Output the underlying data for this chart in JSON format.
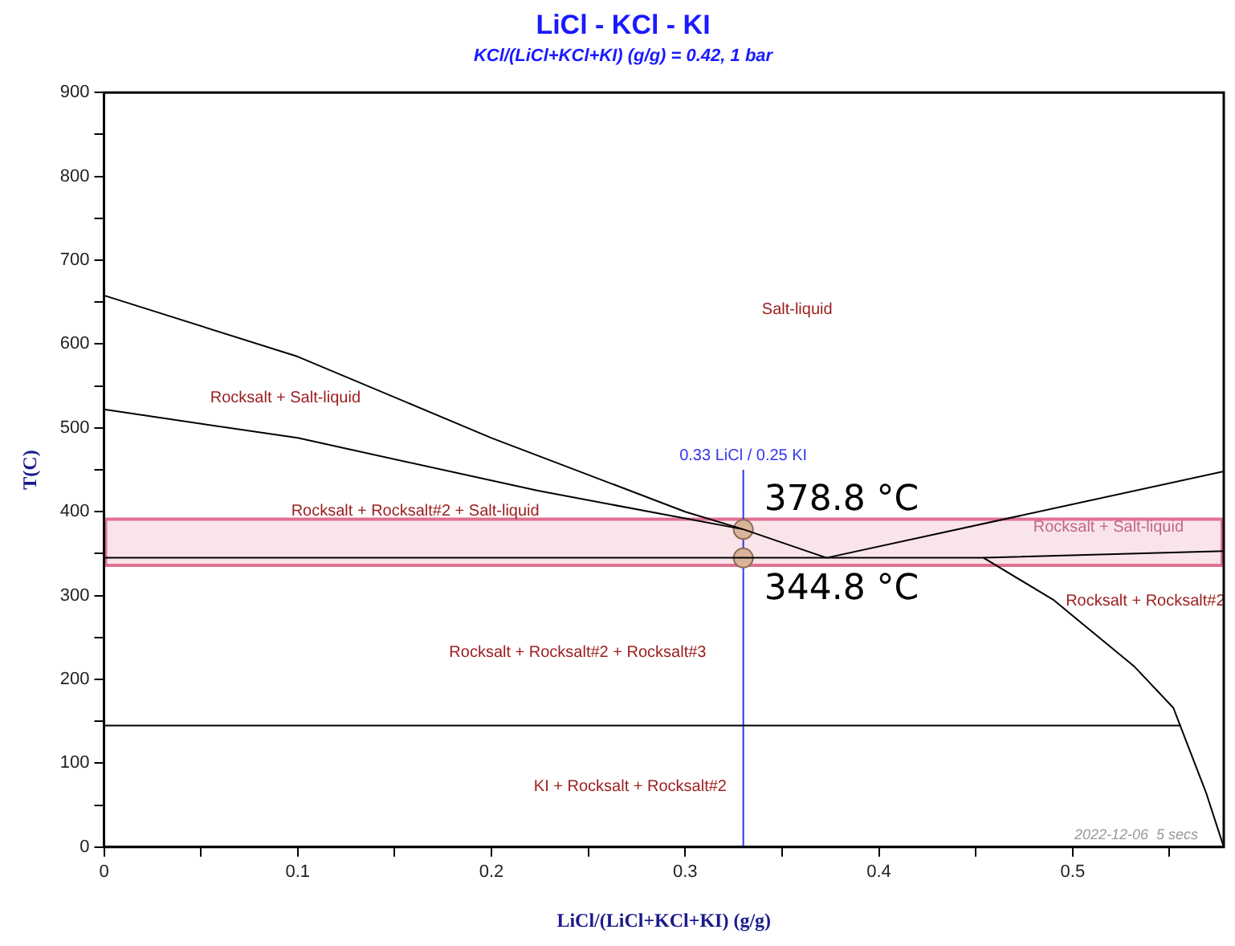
{
  "chart_data": {
    "type": "line",
    "title": "LiCl - KCl - KI",
    "subtitle": "KCl/(LiCl+KCl+KI) (g/g) = 0.42, 1 bar",
    "xlabel": "LiCl/(LiCl+KCl+KI) (g/g)",
    "ylabel": "T(C)",
    "xlim": [
      0,
      0.578
    ],
    "ylim": [
      0,
      900
    ],
    "xticks": [
      0,
      {
        "value": 0.05,
        "label": null
      },
      0.1,
      {
        "value": 0.15,
        "label": null
      },
      0.2,
      {
        "value": 0.25,
        "label": null
      },
      0.3,
      {
        "value": 0.35,
        "label": null
      },
      0.4,
      {
        "value": 0.45,
        "label": null
      },
      0.5,
      {
        "value": 0.55,
        "label": null
      }
    ],
    "yticks": [
      0,
      {
        "value": 50,
        "label": null
      },
      100,
      {
        "value": 150,
        "label": null
      },
      200,
      {
        "value": 250,
        "label": null
      },
      300,
      {
        "value": 350,
        "label": null
      },
      400,
      {
        "value": 450,
        "label": null
      },
      500,
      {
        "value": 550,
        "label": null
      },
      600,
      {
        "value": 650,
        "label": null
      },
      700,
      {
        "value": 750,
        "label": null
      },
      800,
      {
        "value": 850,
        "label": null
      },
      900
    ],
    "grid": false,
    "legend": false,
    "marker": "none",
    "line_style": "solid",
    "series": [
      {
        "type": "line",
        "color": "#000000",
        "x": [
          0,
          0.1,
          0.2,
          0.3,
          0.33,
          0.373
        ],
        "values": [
          658,
          585,
          488,
          400,
          379,
          345
        ]
      },
      {
        "type": "line",
        "color": "#000000",
        "x": [
          0,
          0.1,
          0.224,
          0.33
        ],
        "values": [
          522,
          488,
          425,
          379
        ]
      },
      {
        "type": "line",
        "color": "#000000",
        "x": [
          0.373,
          0.578
        ],
        "values": [
          345,
          448
        ]
      },
      {
        "type": "line",
        "color": "#000000",
        "x": [
          0,
          0.454,
          0.578
        ],
        "values": [
          345,
          345,
          353
        ]
      },
      {
        "type": "line",
        "color": "#000000",
        "x": [
          0.454,
          0.49,
          0.532,
          0.552,
          0.556,
          0.569,
          0.578
        ],
        "values": [
          345,
          295,
          215,
          166,
          142,
          64,
          0
        ]
      },
      {
        "type": "line",
        "color": "#000000",
        "x": [
          0,
          0.556
        ],
        "values": [
          145,
          145
        ]
      },
      {
        "type": "scatter",
        "color": "#d9b49a",
        "marker": "circle",
        "x": [
          0.33,
          0.33
        ],
        "values": [
          378.8,
          344.8
        ]
      }
    ],
    "ref_lines": [
      {
        "axis": "x",
        "value": 0.33,
        "label": "0.33 LiCl / 0.25 KI",
        "color": "#3333ee"
      }
    ],
    "bands": [
      {
        "axis": "y",
        "from": 336,
        "to": 391,
        "color": "#e07090"
      }
    ],
    "annotations": [
      "Salt-liquid",
      "Rocksalt + Salt-liquid",
      "Rocksalt + Rocksalt#2 + Salt-liquid",
      "Rocksalt + Salt-liquid",
      "Rocksalt + Rocksalt#2",
      "Rocksalt + Rocksalt#2 + Rocksalt#3",
      "KI + Rocksalt + Rocksalt#2",
      {
        "text": "378.8 °C",
        "x": 0.33,
        "y": 378.8
      },
      {
        "text": "344.8 °C",
        "x": 0.33,
        "y": 344.8
      },
      "2022-12-06  5 secs"
    ]
  }
}
